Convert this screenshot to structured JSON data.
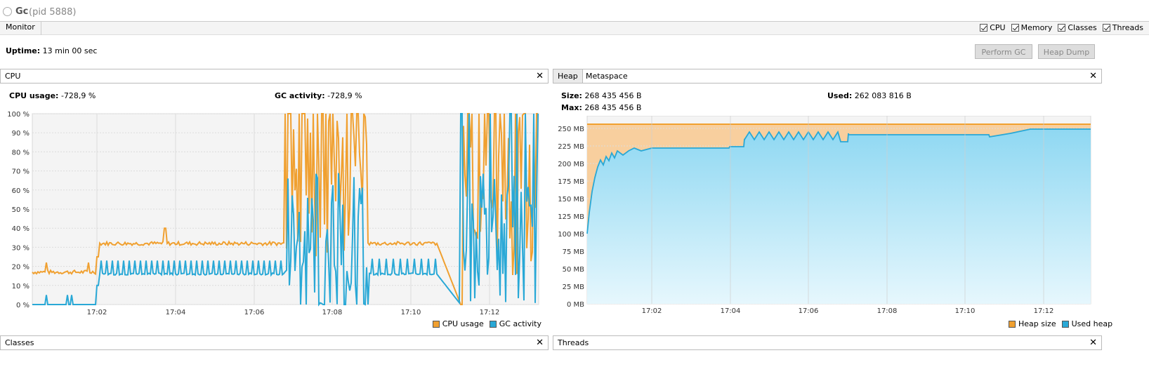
{
  "window": {
    "app_name": "Gc",
    "pid_label": "(pid 5888)"
  },
  "monitor": {
    "tab_label": "Monitor",
    "checkboxes": [
      {
        "label": "CPU",
        "checked": true
      },
      {
        "label": "Memory",
        "checked": true
      },
      {
        "label": "Classes",
        "checked": true
      },
      {
        "label": "Threads",
        "checked": true
      }
    ],
    "uptime_label": "Uptime:",
    "uptime_value": "13 min 00 sec",
    "perform_gc_label": "Perform GC",
    "heap_dump_label": "Heap Dump"
  },
  "cpu_panel": {
    "tab_label": "CPU",
    "close_label": "✕",
    "cpu_usage_label": "CPU usage:",
    "cpu_usage_value": "-728,9 %",
    "gc_activity_label": "GC activity:",
    "gc_activity_value": "-728,9 %",
    "legend": [
      "CPU usage",
      "GC activity"
    ]
  },
  "heap_panel": {
    "tabs": [
      "Heap",
      "Metaspace"
    ],
    "close_label": "✕",
    "size_label": "Size:",
    "size_value": "268 435 456 B",
    "max_label": "Max:",
    "max_value": "268 435 456 B",
    "used_label": "Used:",
    "used_value": "262 083 816 B",
    "legend": [
      "Heap size",
      "Used heap"
    ]
  },
  "bottom_panels": {
    "classes_label": "Classes",
    "threads_label": "Threads",
    "close_label": "✕"
  },
  "colors": {
    "cpu_orange": "#f0a030",
    "gc_blue": "#29a8d6",
    "heap_fill": "#f8cf9e",
    "used_fill": "#a9e1f5"
  },
  "chart_data": [
    {
      "type": "line",
      "title": "",
      "x": [
        "17:02",
        "17:04",
        "17:06",
        "17:08",
        "17:10",
        "17:12"
      ],
      "y_ticks": [
        "0 %",
        "10 %",
        "20 %",
        "30 %",
        "40 %",
        "50 %",
        "60 %",
        "70 %",
        "80 %",
        "90 %",
        "100 %"
      ],
      "ylim": [
        0,
        100
      ],
      "series": [
        {
          "name": "CPU usage",
          "values_approx": {
            "before_17:02": 17,
            "17:02_to_17:07": 32,
            "17:07_to_17:08_30": "0-100 spikes",
            "17:08_30_to_17:11": 32,
            "17:11_to_17:11_40": 0,
            "17:11_40_to_end": "0-100 spikes"
          }
        },
        {
          "name": "GC activity",
          "values_approx": {
            "before_17:02": 0,
            "17:02_to_17:07": 16,
            "17:07_to_17:08_30": "0-100 spikes",
            "17:08_30_to_17:11": 16,
            "17:11_to_17:11_40": 0,
            "17:11_40_to_end": "0-100 spikes"
          }
        }
      ],
      "grid": true,
      "legend_position": "bottom-right"
    },
    {
      "type": "area",
      "title": "",
      "x": [
        "17:02",
        "17:04",
        "17:06",
        "17:08",
        "17:10",
        "17:12"
      ],
      "y_ticks": [
        "0 MB",
        "25 MB",
        "50 MB",
        "75 MB",
        "100 MB",
        "125 MB",
        "150 MB",
        "175 MB",
        "200 MB",
        "225 MB",
        "250 MB"
      ],
      "ylim": [
        0,
        275
      ],
      "series": [
        {
          "name": "Heap size",
          "values_approx": {
            "constant": 256
          }
        },
        {
          "name": "Used heap",
          "values_approx": {
            "start": 100,
            "17:02": 222,
            "17:04": 225,
            "17:05": 235,
            "17:07": 243,
            "17:10": 240,
            "17:11": 237,
            "17:12": 249,
            "end": 249
          }
        }
      ],
      "grid": true,
      "legend_position": "bottom-right"
    }
  ]
}
